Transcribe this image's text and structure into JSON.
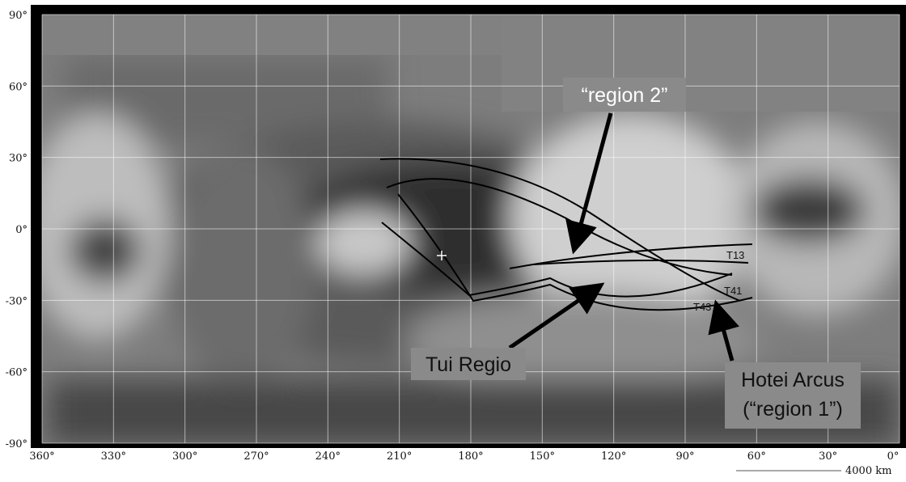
{
  "map": {
    "lat_labels": [
      "90°",
      "60°",
      "30°",
      "0°",
      "-30°",
      "-60°",
      "-90°"
    ],
    "lon_labels": [
      "360°",
      "330°",
      "300°",
      "270°",
      "240°",
      "210°",
      "180°",
      "150°",
      "120°",
      "90°",
      "60°",
      "30°",
      "0°"
    ],
    "annotations": {
      "region_2": "“region 2”",
      "tui_regio": "Tui Regio",
      "hotei_arcus": [
        "Hotei Arcus",
        "(“region 1”)"
      ]
    },
    "tracks": [
      "T13",
      "T41",
      "T43"
    ],
    "scale_bar": "4000 km"
  }
}
